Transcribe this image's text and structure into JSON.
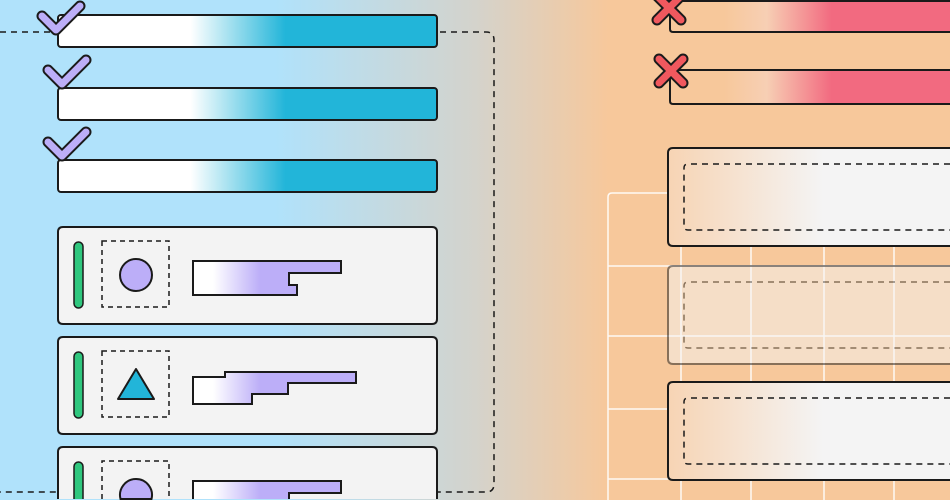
{
  "colors": {
    "background_left": "#b0e2fb",
    "background_right": "#f7c89b",
    "progress_fill": "#22b5d9",
    "checkmark": "#bcaef8",
    "error_fill": "#f26a80",
    "x_mark": "#f0585e",
    "card_fill": "#f3f3f3",
    "status_green": "#2fc77e",
    "shape_purple": "#bcaef8",
    "triangle_blue": "#22b5d9",
    "outline": "#1a1a1a"
  },
  "left_column": {
    "success_bars": [
      {
        "icon": "checkmark-icon"
      },
      {
        "icon": "checkmark-icon"
      },
      {
        "icon": "checkmark-icon"
      }
    ],
    "cards": [
      {
        "shape": "circle-icon"
      },
      {
        "shape": "triangle-icon"
      },
      {
        "shape": "circle-icon"
      }
    ]
  },
  "right_column": {
    "error_bars": [
      {
        "icon": "x-mark-icon"
      },
      {
        "icon": "x-mark-icon"
      }
    ],
    "placeholder_boxes": [
      {
        "state": "active"
      },
      {
        "state": "faded"
      },
      {
        "state": "active"
      }
    ]
  }
}
